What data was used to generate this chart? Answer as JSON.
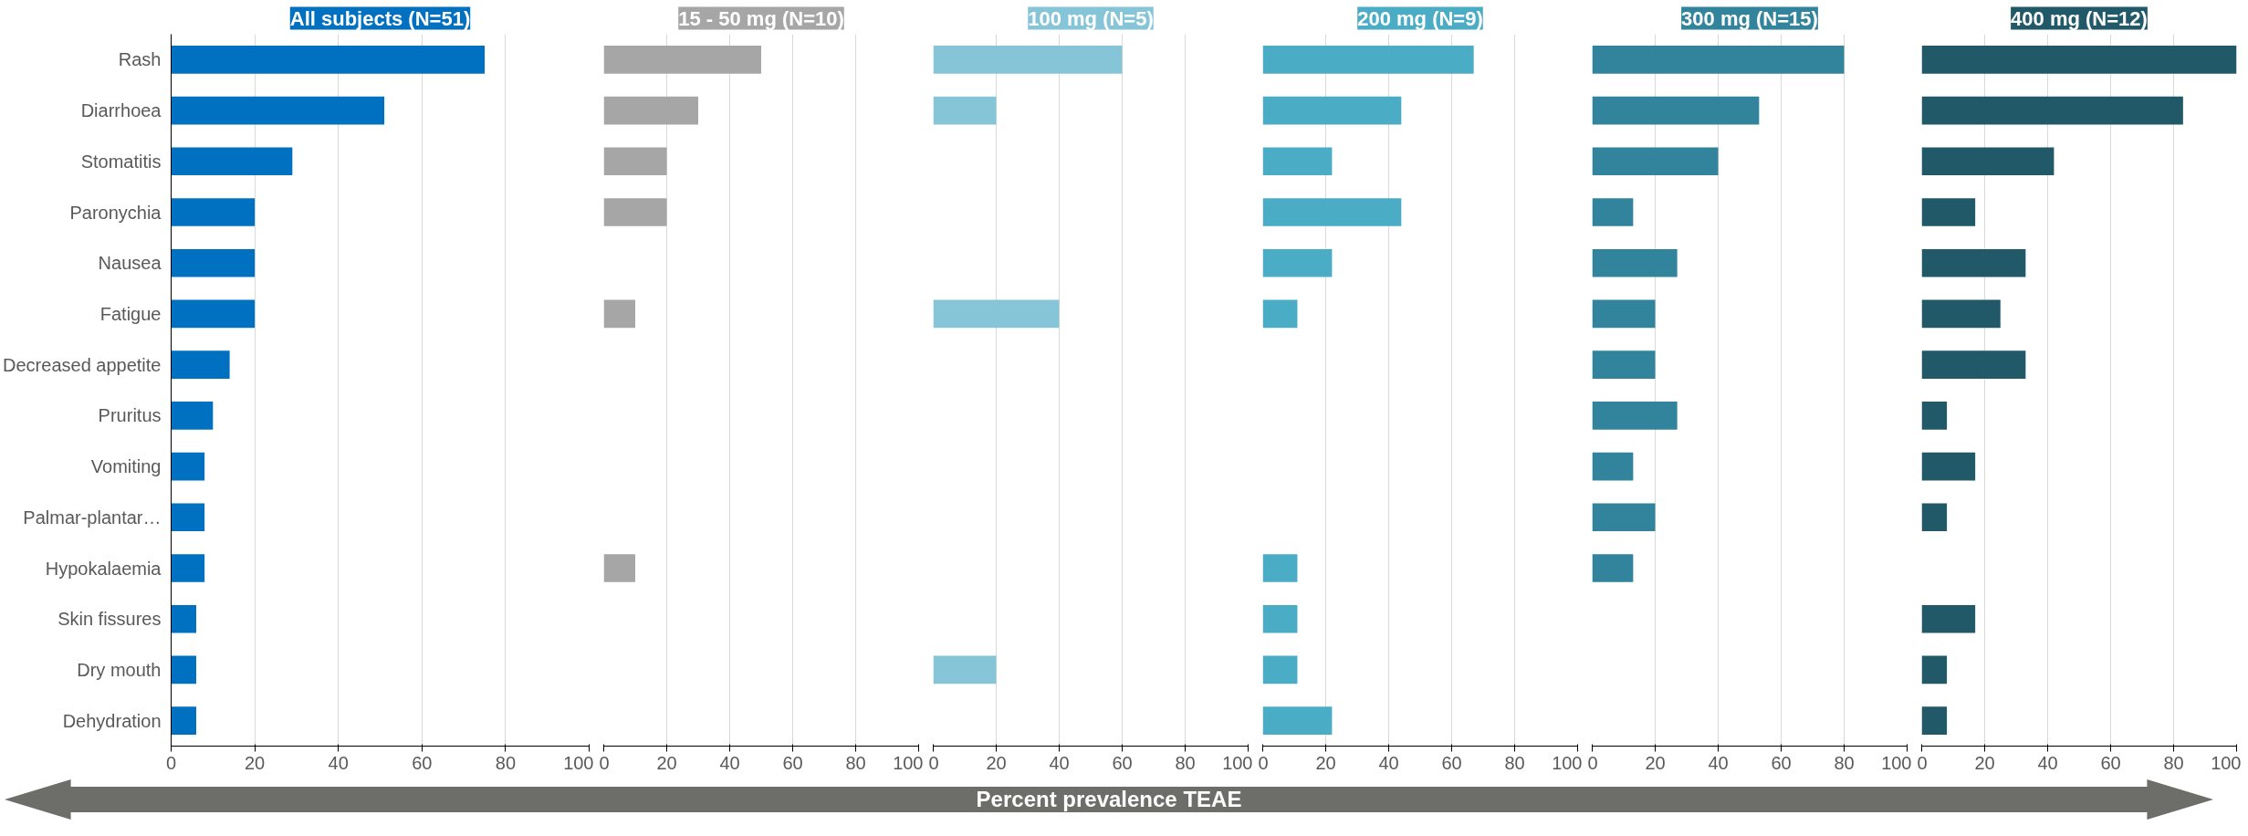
{
  "chart_data": [
    {
      "type": "bar",
      "orientation": "horizontal",
      "title": "All subjects (N=51)",
      "categories": [
        "Rash",
        "Diarrhoea",
        "Stomatitis",
        "Paronychia",
        "Nausea",
        "Fatigue",
        "Decreased appetite",
        "Pruritus",
        "Vomiting",
        "Palmar-plantar…",
        "Hypokalaemia",
        "Skin fissures",
        "Dry mouth",
        "Dehydration"
      ],
      "series": [
        {
          "color": "#0070c0",
          "values": [
            75,
            51,
            29,
            20,
            20,
            20,
            14,
            10,
            8,
            8,
            8,
            6,
            6,
            6
          ]
        }
      ],
      "xlim": [
        0,
        100
      ],
      "xticks": [
        0,
        20,
        40,
        60,
        80,
        100
      ],
      "grid": "x"
    },
    {
      "type": "bar",
      "orientation": "horizontal",
      "title": "15 - 50 mg (N=10)",
      "categories": [
        null,
        null,
        null,
        null,
        null,
        null,
        null,
        null,
        null,
        null,
        null,
        null,
        null,
        null
      ],
      "series": [
        {
          "color": "#a6a6a6",
          "values": [
            50,
            30,
            20,
            20,
            0,
            10,
            0,
            0,
            0,
            0,
            10,
            0,
            0,
            0
          ]
        }
      ],
      "xlim": [
        0,
        100
      ],
      "xticks": [
        0,
        20,
        40,
        60,
        80,
        100
      ],
      "grid": "x",
      "tick_labels": "x"
    },
    {
      "type": "bar",
      "orientation": "horizontal",
      "title": "100 mg (N=5)",
      "categories": [
        null,
        null,
        null,
        null,
        null,
        null,
        null,
        null,
        null,
        null,
        null,
        null,
        null,
        null
      ],
      "series": [
        {
          "color": "#86c5d8",
          "values": [
            60,
            20,
            0,
            0,
            0,
            40,
            0,
            0,
            0,
            0,
            0,
            0,
            20,
            0
          ]
        }
      ],
      "xlim": [
        0,
        100
      ],
      "xticks": [
        0,
        20,
        40,
        60,
        80,
        100
      ],
      "grid": "x",
      "tick_labels": "x"
    },
    {
      "type": "bar",
      "orientation": "horizontal",
      "title": "200 mg (N=9)",
      "categories": [
        null,
        null,
        null,
        null,
        null,
        null,
        null,
        null,
        null,
        null,
        null,
        null,
        null,
        null
      ],
      "series": [
        {
          "color": "#4bacc6",
          "values": [
            67,
            44,
            22,
            44,
            22,
            11,
            0,
            0,
            0,
            0,
            11,
            11,
            11,
            22
          ]
        }
      ],
      "xlim": [
        0,
        100
      ],
      "xticks": [
        0,
        20,
        40,
        60,
        80,
        100
      ],
      "grid": "x",
      "tick_labels": "x"
    },
    {
      "type": "bar",
      "orientation": "horizontal",
      "title": "300 mg (N=15)",
      "categories": [
        null,
        null,
        null,
        null,
        null,
        null,
        null,
        null,
        null,
        null,
        null,
        null,
        null,
        null
      ],
      "series": [
        {
          "color": "#31849b",
          "values": [
            80,
            53,
            40,
            13,
            27,
            20,
            20,
            27,
            13,
            20,
            13,
            0,
            0,
            0
          ]
        }
      ],
      "xlim": [
        0,
        100
      ],
      "xticks": [
        0,
        20,
        40,
        60,
        80,
        100
      ],
      "grid": "x",
      "tick_labels": "x"
    },
    {
      "type": "bar",
      "orientation": "horizontal",
      "title": "400 mg (N=12)",
      "categories": [
        null,
        null,
        null,
        null,
        null,
        null,
        null,
        null,
        null,
        null,
        null,
        null,
        null,
        null
      ],
      "series": [
        {
          "color": "#215968",
          "values": [
            100,
            83,
            42,
            17,
            33,
            25,
            33,
            8,
            17,
            8,
            0,
            17,
            8,
            8
          ]
        }
      ],
      "xlim": [
        0,
        100
      ],
      "xticks": [
        0,
        20,
        40,
        60,
        80,
        100
      ],
      "grid": "x",
      "tick_labels": "x"
    },
    {
      "type": "other",
      "annotations": [
        "Percent prevalence TEAE"
      ]
    }
  ]
}
